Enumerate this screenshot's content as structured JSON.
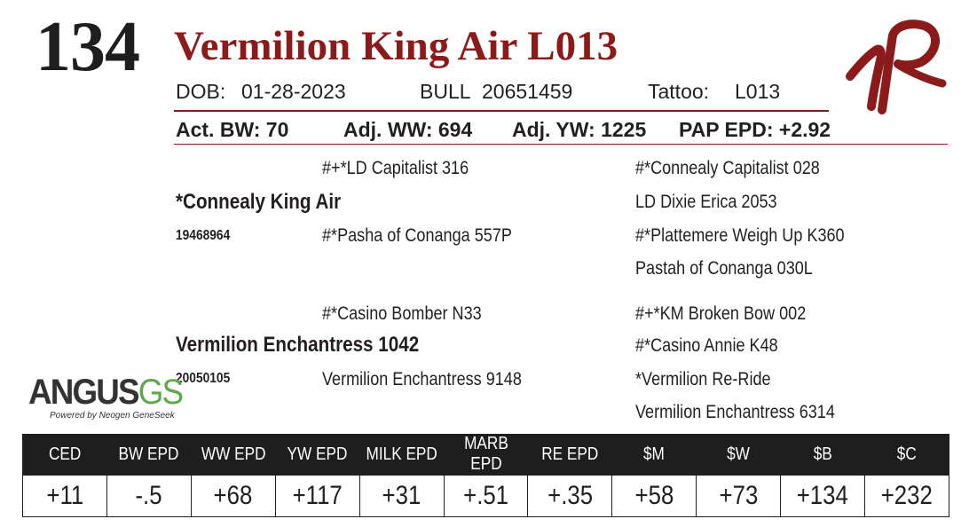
{
  "lot_number": "134",
  "animal_name": "Vermilion King Air L013",
  "info": {
    "dob_label": "DOB:",
    "dob": "01-28-2023",
    "sex_label": "BULL",
    "reg_number": "20651459",
    "tattoo_label": "Tattoo:",
    "tattoo": "L013"
  },
  "stats": {
    "act_bw": "Act. BW: 70",
    "adj_ww": "Adj. WW: 694",
    "adj_yw": "Adj. YW: 1225",
    "pap_epd": "PAP EPD: +2.92"
  },
  "pedigree": {
    "sire": "*Connealy King Air",
    "sire_reg": "19468964",
    "sire_sire": "#+*LD Capitalist 316",
    "sire_dam": "#*Pasha of Conanga 557P",
    "sire_sire_sire": "#*Connealy Capitalist 028",
    "sire_sire_dam": "LD Dixie Erica 2053",
    "sire_dam_sire": "#*Plattemere Weigh Up K360",
    "sire_dam_dam": "Pastah of Conanga 030L",
    "dam": "Vermilion Enchantress 1042",
    "dam_reg": "20050105",
    "dam_sire": "#*Casino Bomber N33",
    "dam_dam": "Vermilion Enchantress 9148",
    "dam_sire_sire": "#+*KM Broken Bow 002",
    "dam_sire_dam": "#*Casino Annie K48",
    "dam_dam_sire": "*Vermilion Re-Ride",
    "dam_dam_dam": "Vermilion Enchantress 6314"
  },
  "logo": {
    "main": "ANGUS",
    "suffix": "GS",
    "tagline": "Powered by Neogen GeneSeek"
  },
  "brand_mark": "brand-logo-icon",
  "colors": {
    "accent": "#8b1a1a",
    "header_bar": "#1e1e1e",
    "logo_green": "#5fa84b"
  },
  "epd_table": {
    "headers": [
      "CED",
      "BW EPD",
      "WW EPD",
      "YW EPD",
      "MILK EPD",
      "MARB EPD",
      "RE EPD",
      "$M",
      "$W",
      "$B",
      "$C"
    ],
    "values": [
      "+11",
      "-.5",
      "+68",
      "+117",
      "+31",
      "+.51",
      "+.35",
      "+58",
      "+73",
      "+134",
      "+232"
    ]
  }
}
